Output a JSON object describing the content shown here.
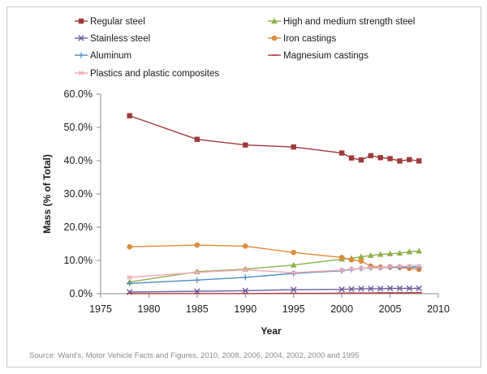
{
  "chart_data": {
    "type": "line",
    "title": "",
    "xlabel": "Year",
    "ylabel": "Mass (% of Total)",
    "xlim": [
      1975,
      2010
    ],
    "ylim": [
      0,
      60
    ],
    "x_ticks": [
      1975,
      1980,
      1985,
      1990,
      1995,
      2000,
      2005,
      2010
    ],
    "y_ticks": [
      "0.0%",
      "10.0%",
      "20.0%",
      "30.0%",
      "40.0%",
      "50.0%",
      "60.0%"
    ],
    "y_tick_values": [
      0,
      10,
      20,
      30,
      40,
      50,
      60
    ],
    "grid": false,
    "legend_position": "top",
    "x": [
      1978,
      1985,
      1990,
      1995,
      2000,
      2001,
      2002,
      2003,
      2004,
      2005,
      2006,
      2007,
      2008
    ],
    "series": [
      {
        "name": "Regular steel",
        "color": "#a0393a",
        "marker": "square",
        "values": [
          53.5,
          46.4,
          44.7,
          44.1,
          42.3,
          40.8,
          40.2,
          41.5,
          40.9,
          40.6,
          39.9,
          40.3,
          39.9
        ]
      },
      {
        "name": "High and medium strength steel",
        "color": "#8db04a",
        "marker": "triangle",
        "values": [
          3.5,
          6.6,
          7.4,
          8.6,
          10.4,
          10.6,
          11.1,
          11.5,
          11.8,
          12.0,
          12.2,
          12.6,
          12.8
        ]
      },
      {
        "name": "Stainless steel",
        "color": "#6a5a9c",
        "marker": "x",
        "values": [
          0.5,
          0.7,
          0.9,
          1.2,
          1.3,
          1.4,
          1.5,
          1.5,
          1.5,
          1.6,
          1.6,
          1.6,
          1.6
        ]
      },
      {
        "name": "Iron castings",
        "color": "#e08a3b",
        "marker": "circle",
        "values": [
          14.1,
          14.6,
          14.3,
          12.4,
          10.9,
          10.2,
          9.8,
          8.3,
          8.0,
          8.0,
          7.9,
          7.6,
          7.3
        ]
      },
      {
        "name": "Aluminum",
        "color": "#4a8ec2",
        "marker": "plus",
        "values": [
          3.1,
          4.1,
          4.9,
          6.1,
          6.9,
          7.3,
          7.6,
          7.8,
          7.8,
          7.9,
          7.9,
          8.0,
          7.9
        ]
      },
      {
        "name": "Magnesium castings",
        "color": "#b0383d",
        "marker": "dash",
        "values": [
          0.05,
          0.05,
          0.05,
          0.1,
          0.15,
          0.2,
          0.2,
          0.2,
          0.25,
          0.25,
          0.25,
          0.3,
          0.3
        ]
      },
      {
        "name": "Plastics and plastic composites",
        "color": "#f2a6b4",
        "marker": "star",
        "values": [
          4.9,
          6.4,
          7.2,
          6.3,
          7.1,
          7.4,
          7.6,
          7.9,
          7.8,
          8.1,
          8.2,
          8.3,
          8.3
        ]
      }
    ]
  },
  "source": "Source: Ward's, Motor Vehicle Facts and Figures, 2010, 2008, 2006, 2004, 2002, 2000 and 1995"
}
